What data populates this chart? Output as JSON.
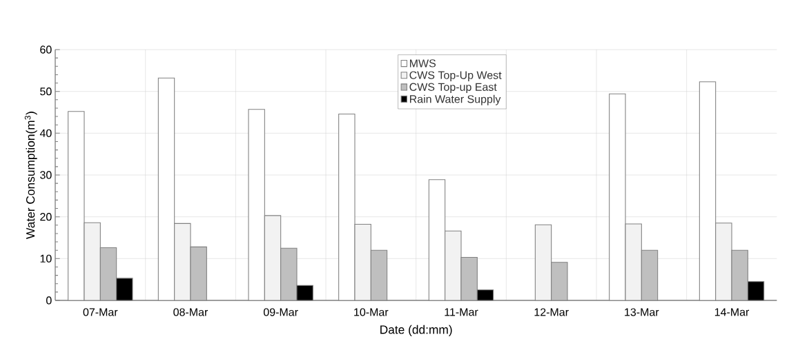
{
  "chart_data": {
    "type": "bar",
    "xlabel": "Date (dd:mm)",
    "ylabel": "Water Consumption(m$^{3}$)",
    "categories": [
      "07-Mar",
      "08-Mar",
      "09-Mar",
      "10-Mar",
      "11-Mar",
      "12-Mar",
      "13-Mar",
      "14-Mar"
    ],
    "series": [
      {
        "name": "MWS",
        "color": "#ffffff",
        "values": [
          45.2,
          53.2,
          45.7,
          44.6,
          28.9,
          null,
          49.4,
          52.3
        ]
      },
      {
        "name": "CWS Top-Up West",
        "color": "#f2f2f2",
        "values": [
          18.6,
          18.4,
          20.3,
          18.2,
          16.6,
          18.1,
          18.3,
          18.5
        ]
      },
      {
        "name": "CWS Top-up East",
        "color": "#bfbfbf",
        "values": [
          12.6,
          12.8,
          12.5,
          12.0,
          10.3,
          9.1,
          12.0,
          12.0
        ]
      },
      {
        "name": "Rain Water Supply",
        "color": "#000000",
        "values": [
          5.3,
          null,
          3.6,
          null,
          2.5,
          null,
          null,
          4.5
        ]
      }
    ],
    "ylim": [
      0,
      60
    ],
    "yticks": [
      0,
      10,
      20,
      30,
      40,
      50,
      60
    ],
    "grid": true,
    "legend": "top"
  }
}
